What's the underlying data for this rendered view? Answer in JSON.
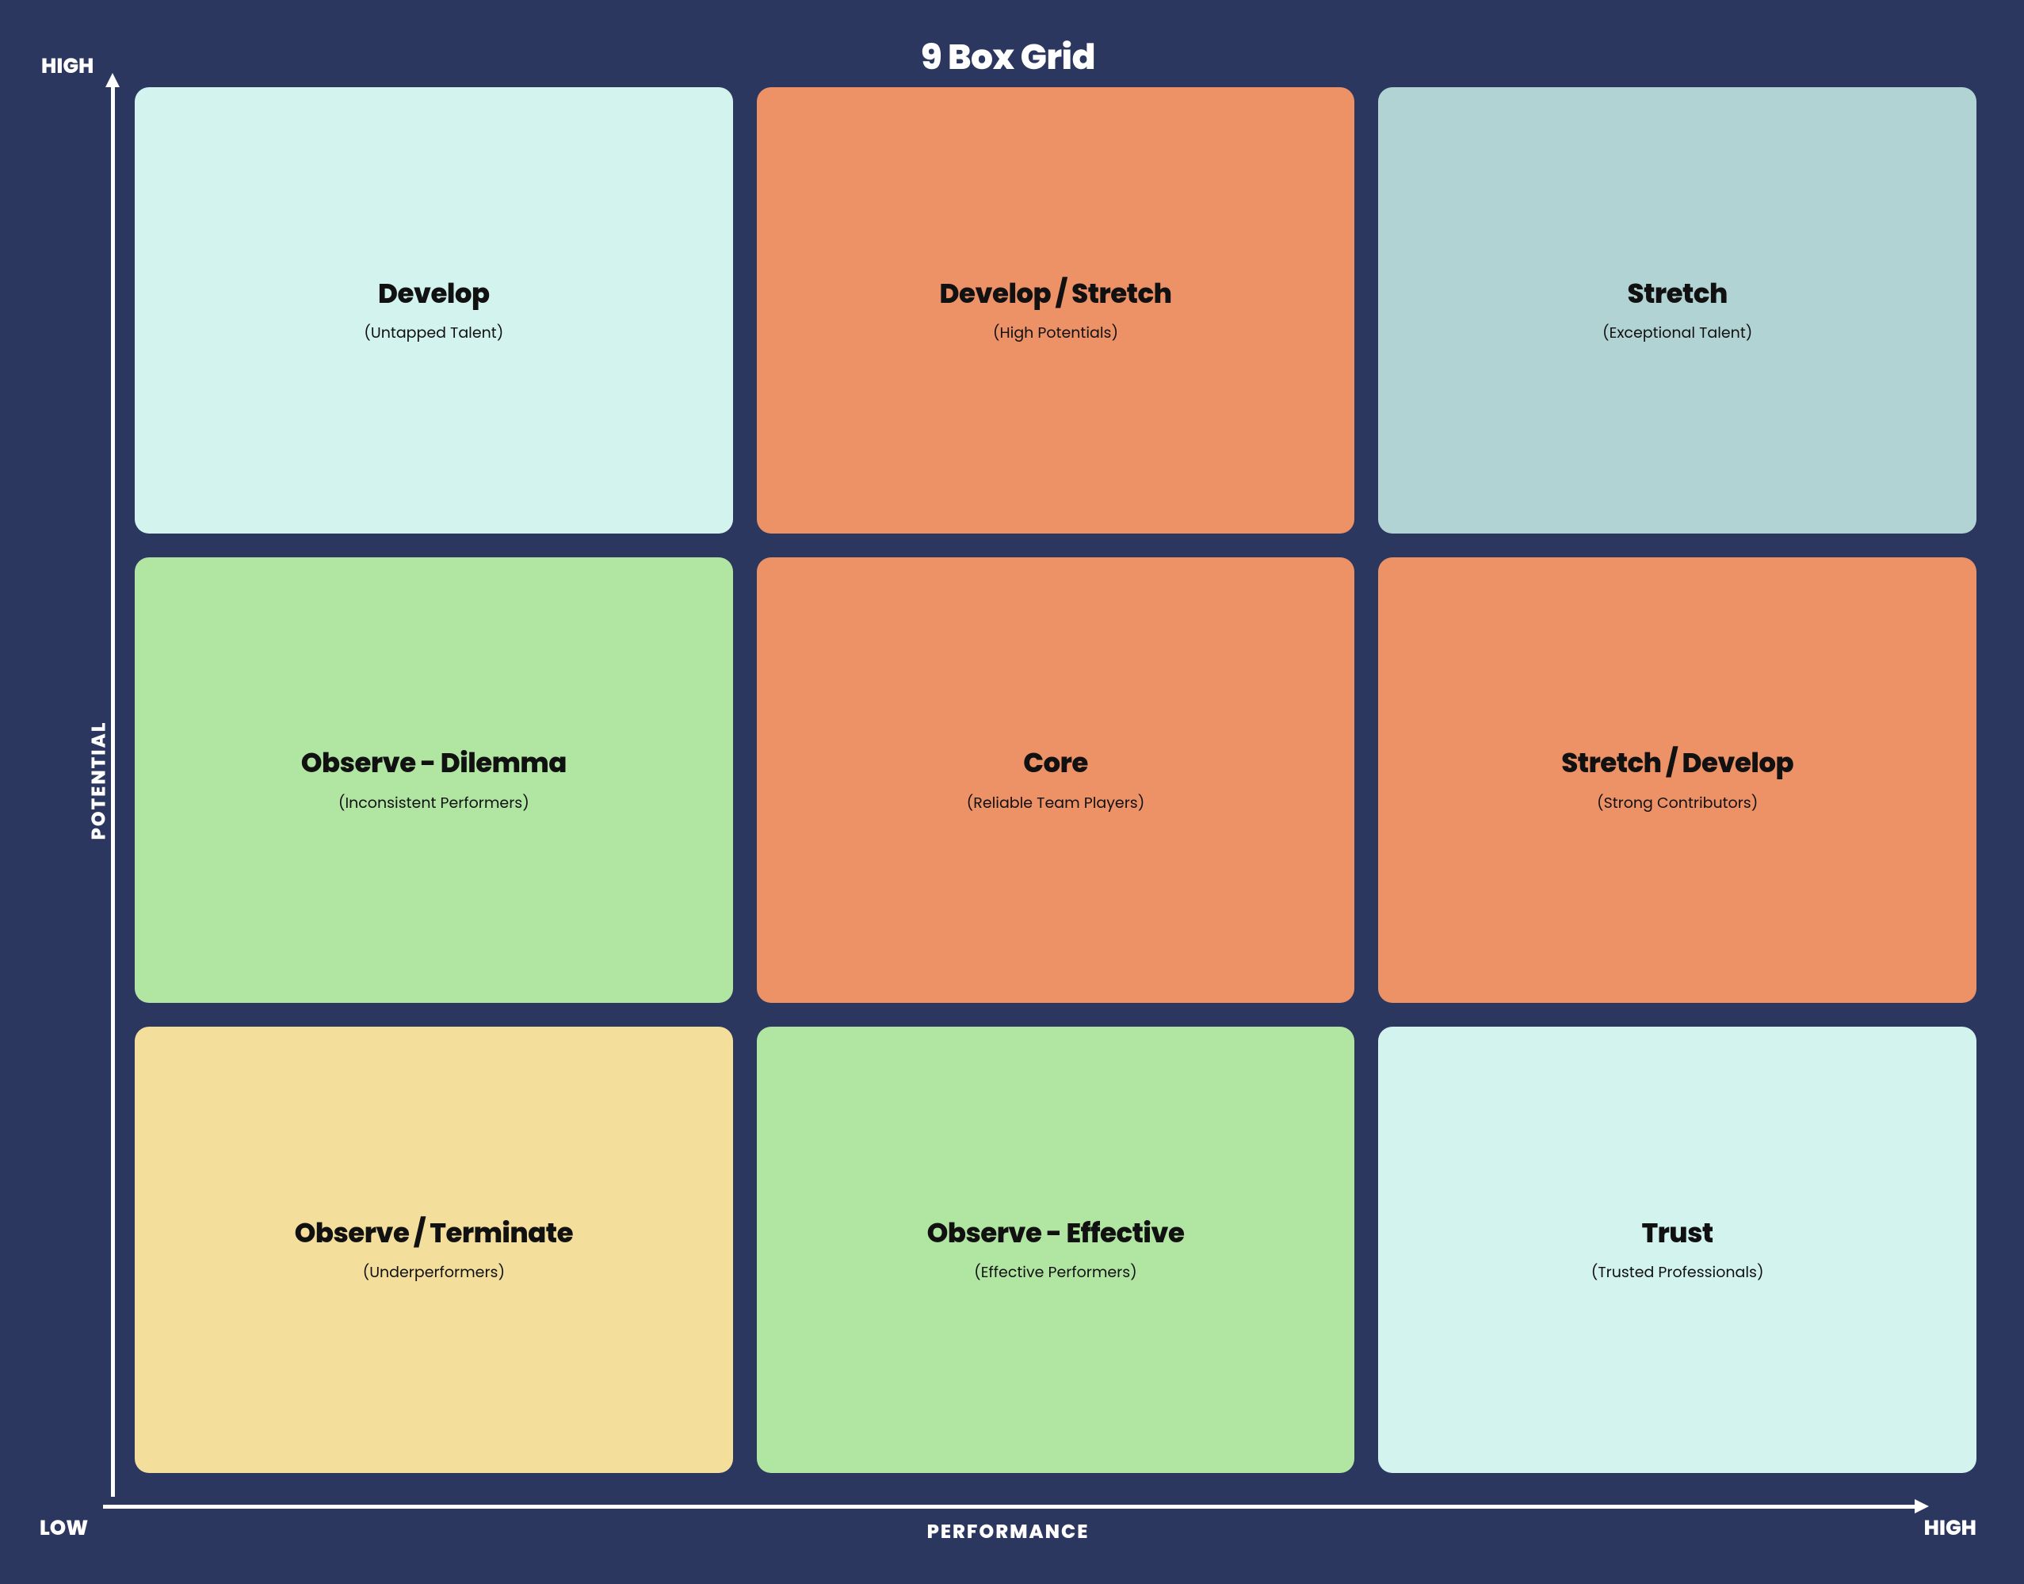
{
  "diagram": {
    "type": "9-box-grid",
    "title": "9 Box Grid",
    "background_color": "#2c3760",
    "text_color": "#ffffff",
    "cell_text_color": "#111111",
    "axis_line_color": "#ffffff",
    "title_fontsize": 44,
    "axis_label_fontsize": 24,
    "axis_end_label_fontsize": 26,
    "cell_title_fontsize": 34,
    "cell_subtitle_fontsize": 19,
    "cell_border_radius": 18,
    "cell_gap": 30,
    "y_axis": {
      "label": "POTENTIAL",
      "low": "LOW",
      "high": "HIGH"
    },
    "x_axis": {
      "label": "PERFORMANCE",
      "low": "LOW",
      "high": "HIGH"
    },
    "colors": {
      "pale_cyan": "#d2f3ee",
      "coral": "#ed9167",
      "blue_gray": "#b2d3d3",
      "light_green": "#b1e6a2",
      "pale_yellow": "#f3df9b"
    },
    "cells": [
      {
        "row": 0,
        "col": 0,
        "title": "Develop",
        "subtitle": "(Untapped Talent)",
        "bg": "#d2f3ee"
      },
      {
        "row": 0,
        "col": 1,
        "title": "Develop / Stretch",
        "subtitle": "(High Potentials)",
        "bg": "#ed9167"
      },
      {
        "row": 0,
        "col": 2,
        "title": "Stretch",
        "subtitle": "(Exceptional Talent)",
        "bg": "#b2d3d3"
      },
      {
        "row": 1,
        "col": 0,
        "title": "Observe - Dilemma",
        "subtitle": "(Inconsistent Performers)",
        "bg": "#b1e6a2"
      },
      {
        "row": 1,
        "col": 1,
        "title": "Core",
        "subtitle": "(Reliable Team Players)",
        "bg": "#ed9167"
      },
      {
        "row": 1,
        "col": 2,
        "title": "Stretch / Develop",
        "subtitle": "(Strong Contributors)",
        "bg": "#ed9167"
      },
      {
        "row": 2,
        "col": 0,
        "title": "Observe / Terminate",
        "subtitle": "(Underperformers)",
        "bg": "#f3df9b"
      },
      {
        "row": 2,
        "col": 1,
        "title": "Observe - Effective",
        "subtitle": "(Effective Performers)",
        "bg": "#b1e6a2"
      },
      {
        "row": 2,
        "col": 2,
        "title": "Trust",
        "subtitle": "(Trusted Professionals)",
        "bg": "#d2f3ee"
      }
    ]
  }
}
